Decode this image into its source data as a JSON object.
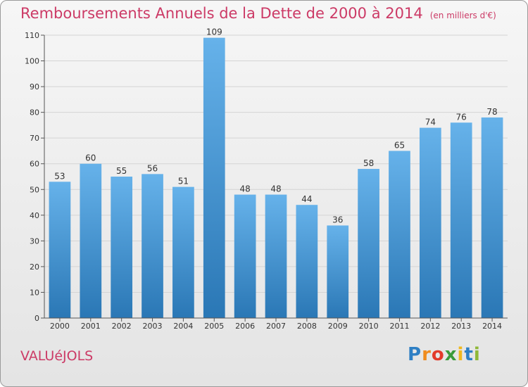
{
  "title": "Remboursements Annuels de la Dette de 2000 à 2014",
  "unit_note": "(en milliers d'€)",
  "commune": "VALUéJOLS",
  "logo": {
    "letters": [
      "P",
      "r",
      "o",
      "x",
      "i",
      "t",
      "i"
    ],
    "colors": [
      "#2e7fc4",
      "#f08c1e",
      "#e23a2a",
      "#3a9a3a",
      "#f0b81e",
      "#2e7fc4",
      "#8fb838"
    ]
  },
  "colors": {
    "bar_top": "#66b2ea",
    "bar_bottom": "#2a77b5",
    "text": "#333333",
    "accent": "#cc3a66",
    "grid": "#d4d4d4"
  },
  "chart_data": {
    "type": "bar",
    "categories": [
      "2000",
      "2001",
      "2002",
      "2003",
      "2004",
      "2005",
      "2006",
      "2007",
      "2008",
      "2009",
      "2010",
      "2011",
      "2012",
      "2013",
      "2014"
    ],
    "values": [
      53,
      60,
      55,
      56,
      51,
      109,
      48,
      48,
      44,
      36,
      58,
      65,
      74,
      76,
      78
    ],
    "ylim": [
      0,
      110
    ],
    "yticks": [
      0,
      10,
      20,
      30,
      40,
      50,
      60,
      70,
      80,
      90,
      100,
      110
    ],
    "grid": true
  }
}
